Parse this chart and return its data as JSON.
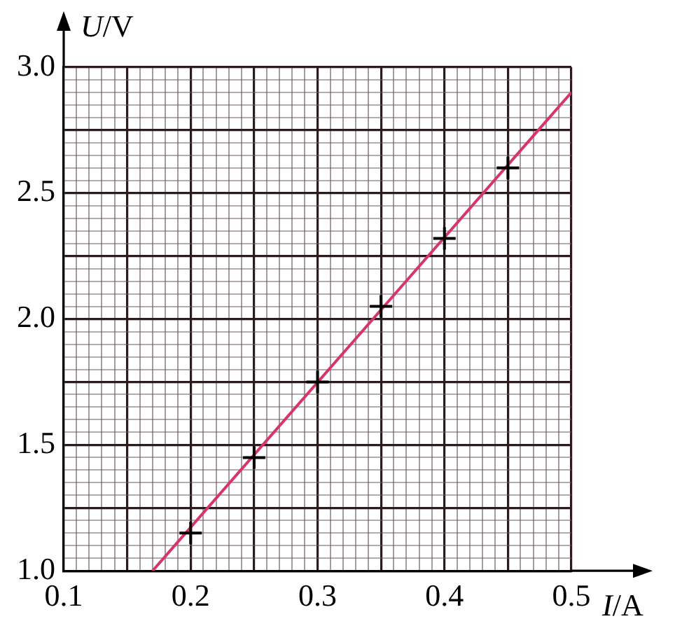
{
  "chart_data": {
    "type": "scatter",
    "xlabel": "I/A",
    "ylabel": "U/V",
    "xlim": [
      0.1,
      0.5
    ],
    "ylim": [
      1,
      3
    ],
    "xticks": [
      0.1,
      {
        "value": 0.11,
        "label": null
      },
      {
        "value": 0.12,
        "label": null
      },
      {
        "value": 0.13,
        "label": null
      },
      {
        "value": 0.14,
        "label": null
      },
      {
        "value": 0.15,
        "label": null
      },
      {
        "value": 0.16,
        "label": null
      },
      {
        "value": 0.17,
        "label": null
      },
      {
        "value": 0.18,
        "label": null
      },
      {
        "value": 0.19,
        "label": null
      },
      0.2,
      {
        "value": 0.21,
        "label": null
      },
      {
        "value": 0.22,
        "label": null
      },
      {
        "value": 0.23,
        "label": null
      },
      {
        "value": 0.24,
        "label": null
      },
      {
        "value": 0.25,
        "label": null
      },
      {
        "value": 0.26,
        "label": null
      },
      {
        "value": 0.27,
        "label": null
      },
      {
        "value": 0.28,
        "label": null
      },
      {
        "value": 0.29,
        "label": null
      },
      0.3,
      {
        "value": 0.31,
        "label": null
      },
      {
        "value": 0.32,
        "label": null
      },
      {
        "value": 0.33,
        "label": null
      },
      {
        "value": 0.34,
        "label": null
      },
      {
        "value": 0.35,
        "label": null
      },
      {
        "value": 0.36,
        "label": null
      },
      {
        "value": 0.37,
        "label": null
      },
      {
        "value": 0.38,
        "label": null
      },
      {
        "value": 0.39,
        "label": null
      },
      0.4,
      {
        "value": 0.41,
        "label": null
      },
      {
        "value": 0.42,
        "label": null
      },
      {
        "value": 0.43,
        "label": null
      },
      {
        "value": 0.44,
        "label": null
      },
      {
        "value": 0.45,
        "label": null
      },
      {
        "value": 0.46,
        "label": null
      },
      {
        "value": 0.47,
        "label": null
      },
      {
        "value": 0.48,
        "label": null
      },
      {
        "value": 0.49,
        "label": null
      },
      0.5
    ],
    "yticks": [
      {
        "value": 1,
        "label": "1.0"
      },
      {
        "value": 1.05,
        "label": null
      },
      {
        "value": 1.1,
        "label": null
      },
      {
        "value": 1.15,
        "label": null
      },
      {
        "value": 1.2,
        "label": null
      },
      {
        "value": 1.25,
        "label": null
      },
      {
        "value": 1.3,
        "label": null
      },
      {
        "value": 1.35,
        "label": null
      },
      {
        "value": 1.4,
        "label": null
      },
      {
        "value": 1.45,
        "label": null
      },
      1.5,
      {
        "value": 1.55,
        "label": null
      },
      {
        "value": 1.6,
        "label": null
      },
      {
        "value": 1.65,
        "label": null
      },
      {
        "value": 1.7,
        "label": null
      },
      {
        "value": 1.75,
        "label": null
      },
      {
        "value": 1.8,
        "label": null
      },
      {
        "value": 1.85,
        "label": null
      },
      {
        "value": 1.9,
        "label": null
      },
      {
        "value": 1.95,
        "label": null
      },
      {
        "value": 2,
        "label": "2.0"
      },
      {
        "value": 2.05,
        "label": null
      },
      {
        "value": 2.1,
        "label": null
      },
      {
        "value": 2.15,
        "label": null
      },
      {
        "value": 2.2,
        "label": null
      },
      {
        "value": 2.25,
        "label": null
      },
      {
        "value": 2.3,
        "label": null
      },
      {
        "value": 2.35,
        "label": null
      },
      {
        "value": 2.4,
        "label": null
      },
      {
        "value": 2.45,
        "label": null
      },
      2.5,
      {
        "value": 2.55,
        "label": null
      },
      {
        "value": 2.6,
        "label": null
      },
      {
        "value": 2.65,
        "label": null
      },
      {
        "value": 2.7,
        "label": null
      },
      {
        "value": 2.75,
        "label": null
      },
      {
        "value": 2.8,
        "label": null
      },
      {
        "value": 2.85,
        "label": null
      },
      {
        "value": 2.9,
        "label": null
      },
      {
        "value": 2.95,
        "label": null
      },
      {
        "value": 3,
        "label": "3.0"
      }
    ],
    "grid": true,
    "marker": "cross",
    "series": [
      {
        "color": "#000000",
        "x": [
          0.2,
          0.25,
          0.3,
          0.35,
          0.4,
          0.45
        ],
        "values": [
          1.15,
          1.45,
          1.75,
          2.05,
          2.32,
          2.6
        ]
      },
      {
        "type": "line",
        "color": "#d6336f",
        "x": [
          0.17,
          0.5
        ],
        "values": [
          1,
          2.9
        ],
        "marker": "none"
      }
    ]
  }
}
